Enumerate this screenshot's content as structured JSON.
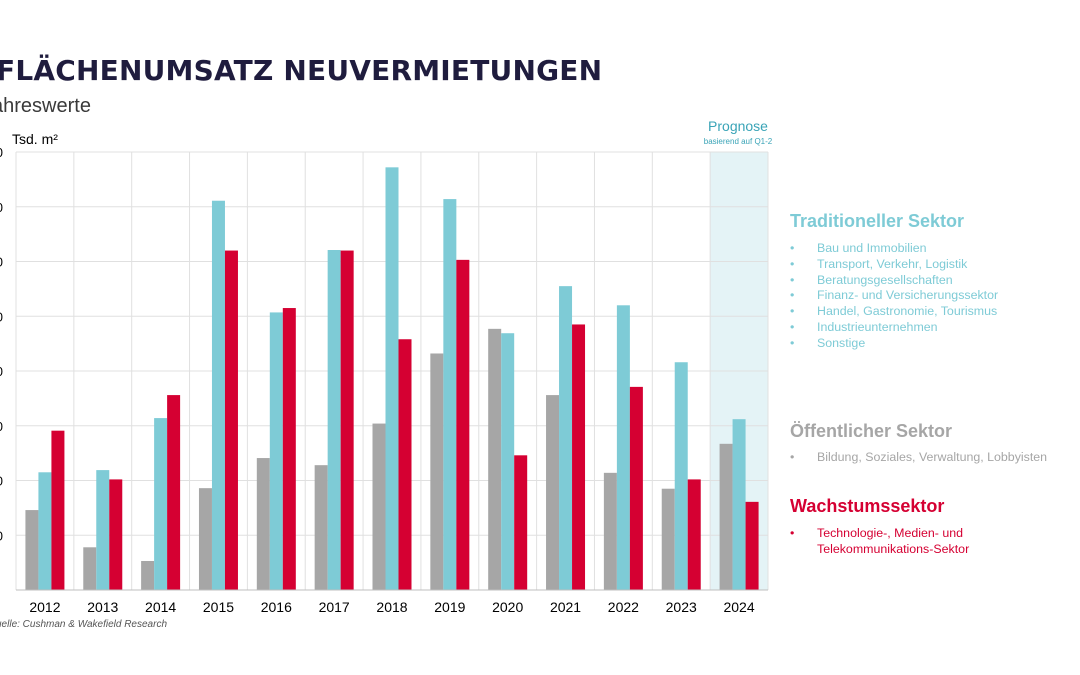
{
  "header": {
    "title": "FLÄCHENUMSATZ NEUVERMIETUNGEN",
    "subtitle": "ahreswerte",
    "unit_label": "Tsd. m²",
    "prognose_label": "Prognose",
    "prognose_sub": "basierend auf Q1-2",
    "source": "uelle: Cushman & Wakefield Research"
  },
  "colors": {
    "public": "#a6a6a6",
    "traditional": "#7ecbd6",
    "growth": "#d50032",
    "forecast_bg": "#e4f3f6",
    "grid": "#e0e0e0",
    "title": "#1f1c3e"
  },
  "legend": {
    "traditional": {
      "title": "Traditioneller Sektor",
      "items": [
        "Bau und Immobilien",
        "Transport, Verkehr, Logistik",
        "Beratungsgesellschaften",
        "Finanz- und Versicherungssektor",
        "Handel, Gastronomie, Tourismus",
        "Industrieunternehmen",
        "Sonstige"
      ]
    },
    "public": {
      "title": "Öffentlicher Sektor",
      "items": [
        "Bildung, Soziales, Verwaltung, Lobbyisten"
      ]
    },
    "growth": {
      "title": "Wachstumssektor",
      "items": [
        "Technologie-, Medien- und Telekommunikations-Sektor"
      ]
    }
  },
  "chart_data": {
    "type": "bar",
    "title": "FLÄCHENUMSATZ NEUVERMIETUNGEN",
    "ylabel": "Tsd. m²",
    "xlabel": "",
    "ylim": [
      0,
      80
    ],
    "yticks": [
      0,
      10,
      20,
      30,
      40,
      50,
      60,
      70,
      80
    ],
    "ytick_labels": [
      "",
      "0",
      "0",
      "0",
      "0",
      "0",
      "0",
      "0",
      "0"
    ],
    "grid": true,
    "categories": [
      "2012",
      "2013",
      "2014",
      "2015",
      "2016",
      "2017",
      "2018",
      "2019",
      "2020",
      "2021",
      "2022",
      "2023",
      "2024"
    ],
    "forecast_category": "2024",
    "series": [
      {
        "name": "Öffentlicher Sektor",
        "color_key": "public",
        "values": [
          14.6,
          7.8,
          5.3,
          18.6,
          24.1,
          22.8,
          30.4,
          43.2,
          47.7,
          35.6,
          21.4,
          18.5,
          26.7
        ]
      },
      {
        "name": "Traditioneller Sektor",
        "color_key": "traditional",
        "values": [
          21.5,
          21.9,
          31.4,
          71.1,
          50.7,
          62.1,
          77.2,
          71.4,
          46.9,
          55.5,
          52.0,
          41.6,
          31.2
        ]
      },
      {
        "name": "Wachstumssektor",
        "color_key": "growth",
        "values": [
          29.1,
          20.2,
          35.6,
          62.0,
          51.5,
          62.0,
          45.8,
          60.3,
          24.6,
          48.5,
          37.1,
          20.2,
          16.1
        ]
      }
    ]
  }
}
